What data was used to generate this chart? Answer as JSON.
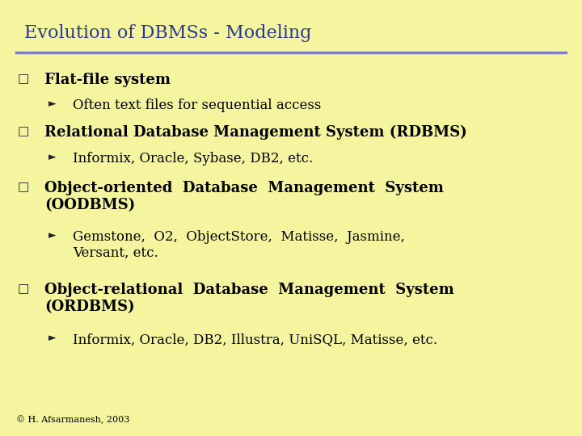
{
  "title": "Evolution of DBMSs - Modeling",
  "title_color": "#2B3A8F",
  "title_fontsize": 16,
  "background_color": "#F5F5A0",
  "separator_color": "#8080C0",
  "text_color": "#000000",
  "footer": "© H. Afsarmanesh, 2003",
  "items": [
    {
      "level": 1,
      "text": "Flat-file system",
      "bold": true
    },
    {
      "level": 2,
      "text": "Often text files for sequential access",
      "bold": false
    },
    {
      "level": 1,
      "text": "Relational Database Management System (RDBMS)",
      "bold": true
    },
    {
      "level": 2,
      "text": "Informix, Oracle, Sybase, DB2, etc.",
      "bold": false
    },
    {
      "level": 1,
      "text": "Object-oriented  Database  Management  System\n(OODBMS)",
      "bold": true
    },
    {
      "level": 2,
      "text": "Gemstone,  O2,  ObjectStore,  Matisse,  Jasmine,\nVersant, etc.",
      "bold": false
    },
    {
      "level": 1,
      "text": "Object-relational  Database  Management  System\n(ORDBMS)",
      "bold": true
    },
    {
      "level": 2,
      "text": "Informix, Oracle, DB2, Illustra, UniSQL, Matisse, etc.",
      "bold": false
    }
  ]
}
